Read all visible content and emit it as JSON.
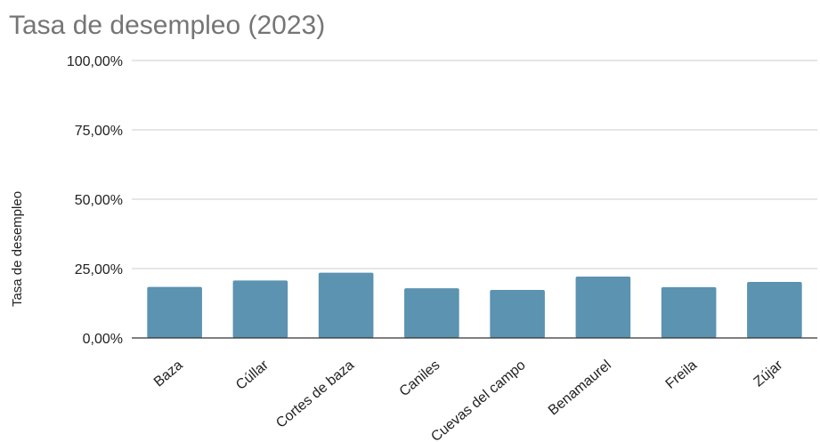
{
  "chart_data": {
    "type": "bar",
    "title": "Tasa de desempleo (2023)",
    "xlabel": "",
    "ylabel": "Tasa de desempleo",
    "ylim": [
      0,
      100
    ],
    "yticks": [
      "0,00%",
      "25,00%",
      "50,00%",
      "75,00%",
      "100,00%"
    ],
    "ytick_values": [
      0,
      25,
      50,
      75,
      100
    ],
    "grid": true,
    "legend": "none",
    "bar_color": "#5b93b1",
    "categories": [
      "Baza",
      "Cúllar",
      "Cortes de baza",
      "Caniles",
      "Cuevas del campo",
      "Benamaurel",
      "Freila",
      "Zújar"
    ],
    "values": [
      18.4,
      20.7,
      23.5,
      17.9,
      17.3,
      22.1,
      18.3,
      20.2
    ]
  }
}
